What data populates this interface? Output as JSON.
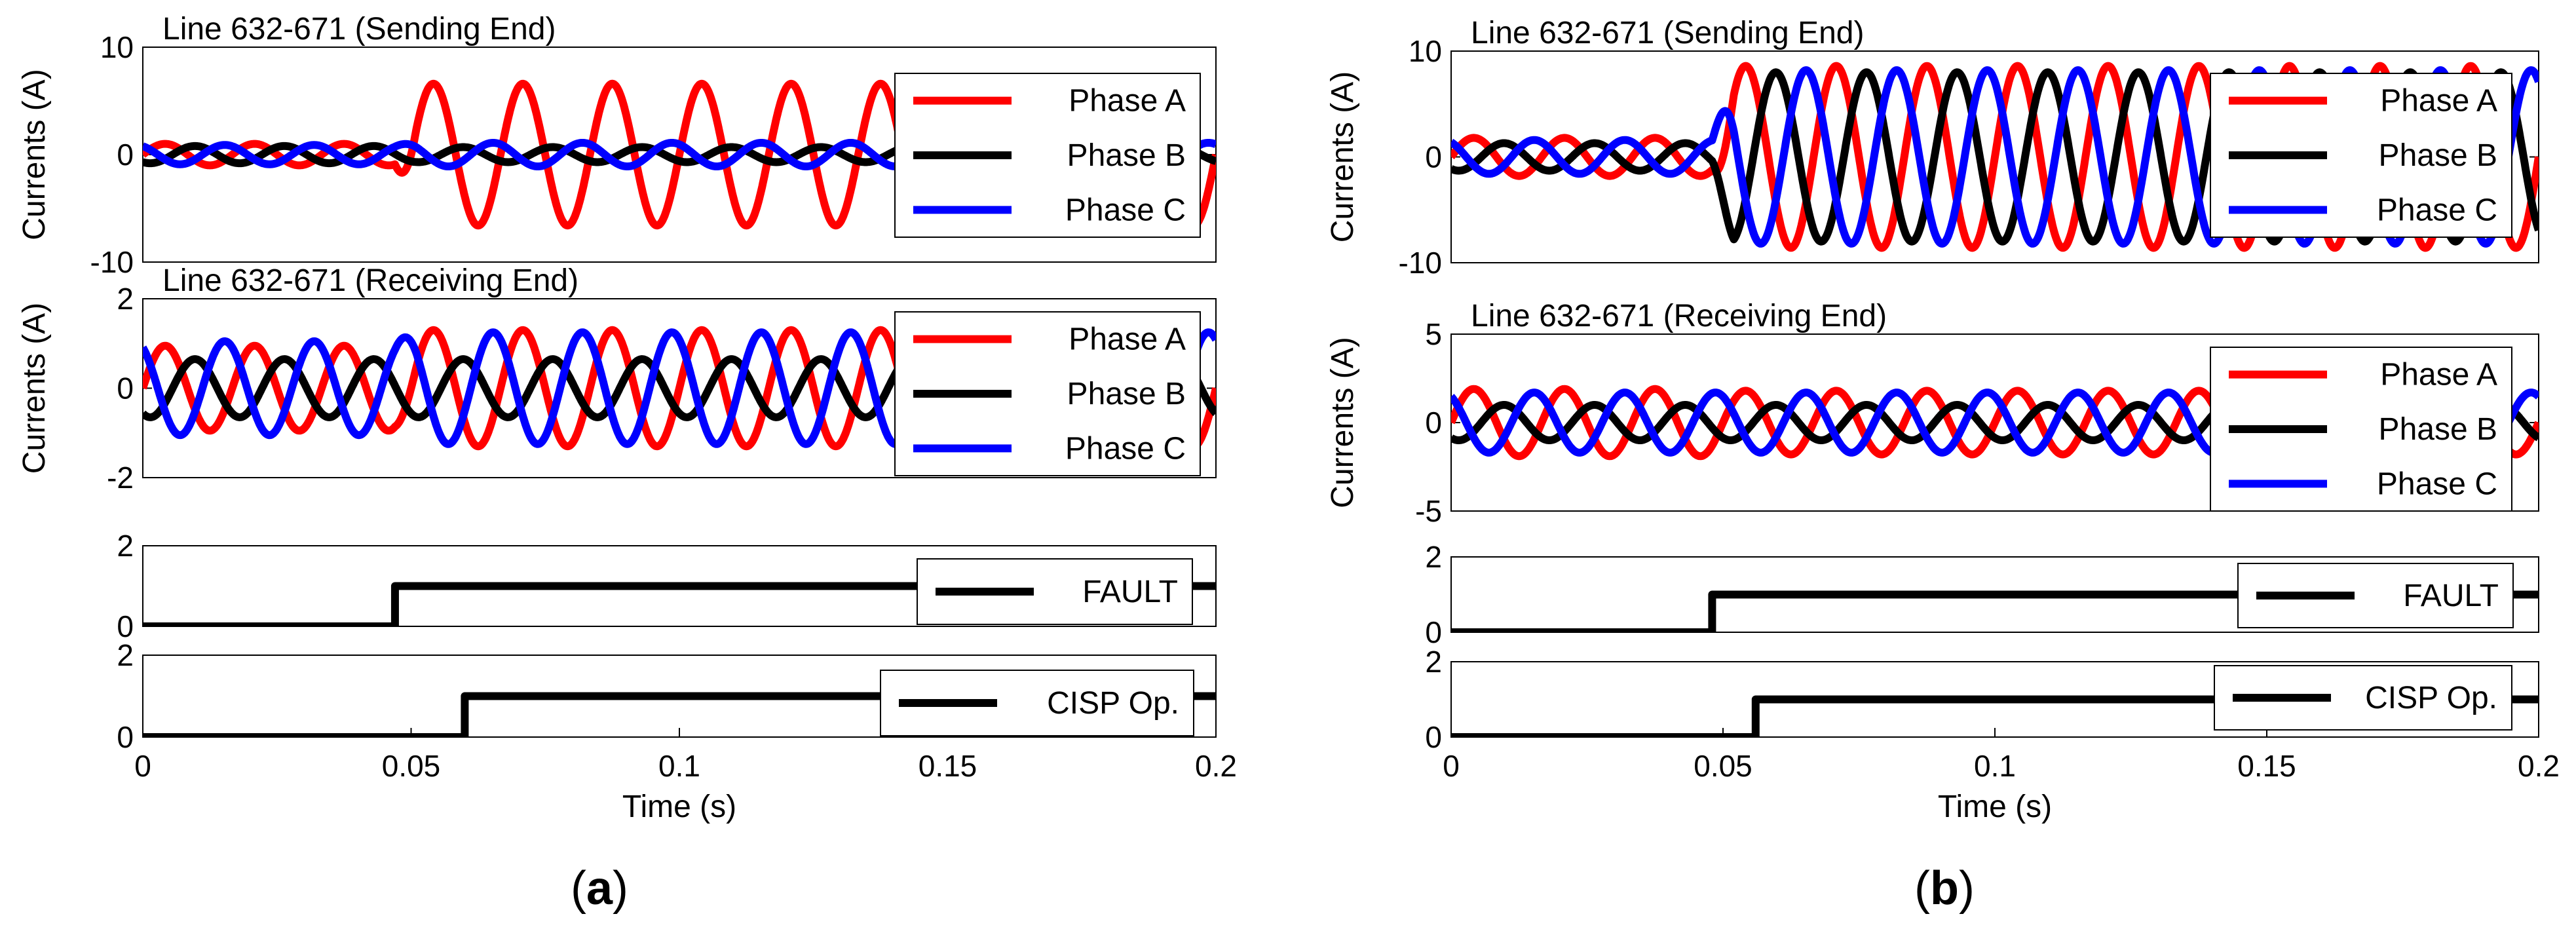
{
  "figure": {
    "caption_a": {
      "open": "(",
      "letter": "a",
      "close": ")"
    },
    "caption_b": {
      "open": "(",
      "letter": "b",
      "close": ")"
    }
  },
  "colors": {
    "phase_a": "#ff0000",
    "phase_b": "#000000",
    "phase_c": "#0000ff",
    "fault": "#000000",
    "cisp": "#000000"
  },
  "chart_data": [
    {
      "id": "a1",
      "type": "line",
      "title": "Line 632-671 (Sending End)",
      "xlabel": "",
      "ylabel": "Currents (A)",
      "xlim": [
        0,
        0.2
      ],
      "ylim": [
        -10,
        10
      ],
      "yticks": [
        "-10",
        "0",
        "10"
      ],
      "xticks": [],
      "legend_position": "top-right",
      "fault_time": 0.047,
      "series": [
        {
          "name": "Phase A",
          "color_key": "phase_a",
          "amp_pre": 1.0,
          "amp_post": 6.6,
          "offset_post": 0,
          "phase_deg": 0
        },
        {
          "name": "Phase B",
          "color_key": "phase_b",
          "amp_pre": 0.8,
          "amp_post": 0.7,
          "offset_post": 0,
          "phase_deg": -120
        },
        {
          "name": "Phase C",
          "color_key": "phase_c",
          "amp_pre": 0.9,
          "amp_post": 1.1,
          "offset_post": 0,
          "phase_deg": 120
        }
      ]
    },
    {
      "id": "a2",
      "type": "line",
      "title": "Line 632-671 (Receiving End)",
      "xlabel": "",
      "ylabel": "Currents (A)",
      "xlim": [
        0,
        0.2
      ],
      "ylim": [
        -2,
        2
      ],
      "yticks": [
        "-2",
        "0",
        "2"
      ],
      "xticks": [],
      "legend_position": "top-right",
      "fault_time": 0.047,
      "series": [
        {
          "name": "Phase A",
          "color_key": "phase_a",
          "amp_pre": 0.95,
          "amp_post": 1.3,
          "offset_post": 0,
          "phase_deg": 0
        },
        {
          "name": "Phase B",
          "color_key": "phase_b",
          "amp_pre": 0.65,
          "amp_post": 0.65,
          "offset_post": 0,
          "phase_deg": -120
        },
        {
          "name": "Phase C",
          "color_key": "phase_c",
          "amp_pre": 1.05,
          "amp_post": 1.25,
          "offset_post": 0,
          "phase_deg": 120
        }
      ]
    },
    {
      "id": "a3",
      "type": "line",
      "title": "",
      "xlabel": "",
      "ylabel": "",
      "xlim": [
        0,
        0.2
      ],
      "ylim": [
        0,
        2
      ],
      "yticks": [
        "0",
        "2"
      ],
      "xticks": [],
      "legend_position": "right",
      "series": [
        {
          "name": "FAULT",
          "color_key": "fault",
          "step_time": 0.047,
          "low": 0,
          "high": 1
        }
      ]
    },
    {
      "id": "a4",
      "type": "line",
      "title": "",
      "xlabel": "Time (s)",
      "ylabel": "",
      "xlim": [
        0,
        0.2
      ],
      "ylim": [
        0,
        2
      ],
      "yticks": [
        "0",
        "2"
      ],
      "xticks": [
        "0",
        "0.05",
        "0.1",
        "0.15",
        "0.2"
      ],
      "legend_position": "right",
      "series": [
        {
          "name": "CISP Op.",
          "color_key": "cisp",
          "step_time": 0.06,
          "low": 0,
          "high": 1
        }
      ]
    },
    {
      "id": "b1",
      "type": "line",
      "title": "Line 632-671 (Sending End)",
      "xlabel": "",
      "ylabel": "Currents (A)",
      "xlim": [
        0,
        0.2
      ],
      "ylim": [
        -10,
        10
      ],
      "yticks": [
        "-10",
        "0",
        "10"
      ],
      "xticks": [],
      "legend_position": "top-right",
      "fault_time": 0.048,
      "series": [
        {
          "name": "Phase A",
          "color_key": "phase_a",
          "amp_pre": 1.8,
          "amp_post": 8.6,
          "offset_post": 0,
          "phase_deg": 0
        },
        {
          "name": "Phase B",
          "color_key": "phase_b",
          "amp_pre": 1.3,
          "amp_post": 8.0,
          "offset_post": 0,
          "phase_deg": -120
        },
        {
          "name": "Phase C",
          "color_key": "phase_c",
          "amp_pre": 1.6,
          "amp_post": 8.2,
          "offset_post": 0,
          "phase_deg": 120
        }
      ]
    },
    {
      "id": "b2",
      "type": "line",
      "title": "Line 632-671 (Receiving End)",
      "xlabel": "",
      "ylabel": "Currents (A)",
      "xlim": [
        0,
        0.2
      ],
      "ylim": [
        -5,
        5
      ],
      "yticks": [
        "-5",
        "0",
        "5"
      ],
      "xticks": [],
      "legend_position": "top-right",
      "fault_time": 0.048,
      "series": [
        {
          "name": "Phase A",
          "color_key": "phase_a",
          "amp_pre": 1.9,
          "amp_post": 1.8,
          "offset_post": 0,
          "phase_deg": 0
        },
        {
          "name": "Phase B",
          "color_key": "phase_b",
          "amp_pre": 1.0,
          "amp_post": 1.0,
          "offset_post": 0,
          "phase_deg": -120
        },
        {
          "name": "Phase C",
          "color_key": "phase_c",
          "amp_pre": 1.7,
          "amp_post": 1.7,
          "offset_post": 0,
          "phase_deg": 120
        }
      ]
    },
    {
      "id": "b3",
      "type": "line",
      "title": "",
      "xlabel": "",
      "ylabel": "",
      "xlim": [
        0,
        0.2
      ],
      "ylim": [
        0,
        2
      ],
      "yticks": [
        "0",
        "2"
      ],
      "xticks": [],
      "legend_position": "right",
      "series": [
        {
          "name": "FAULT",
          "color_key": "fault",
          "step_time": 0.048,
          "low": 0,
          "high": 1
        }
      ]
    },
    {
      "id": "b4",
      "type": "line",
      "title": "",
      "xlabel": "Time (s)",
      "ylabel": "",
      "xlim": [
        0,
        0.2
      ],
      "ylim": [
        0,
        2
      ],
      "yticks": [
        "0",
        "2"
      ],
      "xticks": [
        "0",
        "0.05",
        "0.1",
        "0.15",
        "0.2"
      ],
      "legend_position": "right",
      "series": [
        {
          "name": "CISP Op.",
          "color_key": "cisp",
          "step_time": 0.056,
          "low": 0,
          "high": 1
        }
      ]
    }
  ]
}
